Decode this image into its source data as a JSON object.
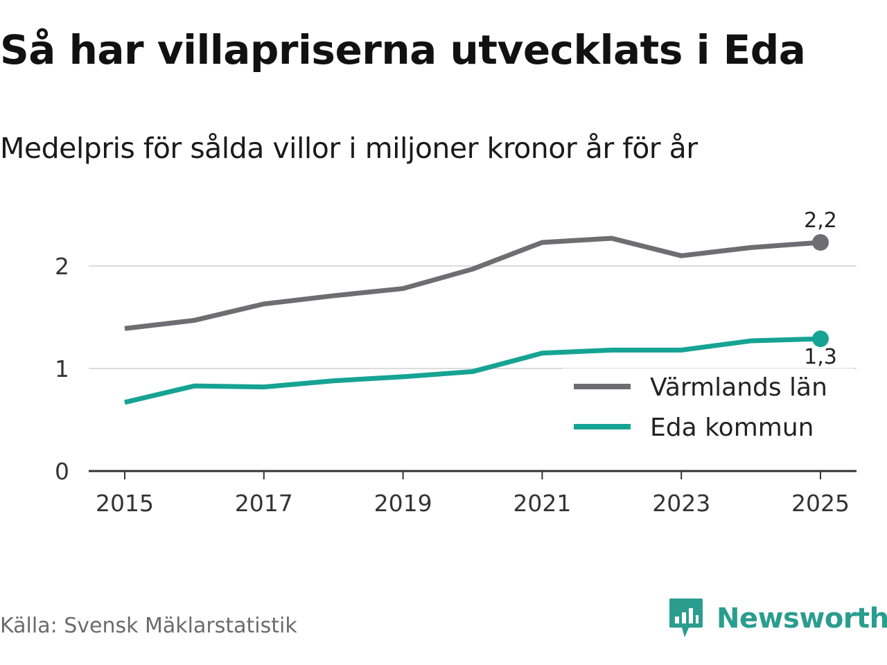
{
  "title": "Så har villapriserna utvecklats i Eda",
  "subtitle": "Medelpris för sålda villor i miljoner kronor år för år",
  "source": "Källa: Svensk Mäklarstatistik",
  "brand": {
    "name": "Newsworthy",
    "icon": "newsworthy-logo-icon",
    "color": "#2a9d8f"
  },
  "chart_data": {
    "type": "line",
    "title": "Så har villapriserna utvecklats i Eda",
    "subtitle": "Medelpris för sålda villor i miljoner kronor år för år",
    "xlabel": "",
    "ylabel": "",
    "x": [
      2015,
      2016,
      2017,
      2018,
      2019,
      2020,
      2021,
      2022,
      2023,
      2024,
      2025
    ],
    "xlim": [
      2014.5,
      2025.5
    ],
    "ylim": [
      0,
      2.5
    ],
    "x_ticks": [
      "2015",
      "2017",
      "2019",
      "2021",
      "2023",
      "2025"
    ],
    "y_ticks": [
      "0",
      "1",
      "2"
    ],
    "grid": "horizontal",
    "legend_position": "bottom-right",
    "series": [
      {
        "name": "Värmlands län",
        "color": "#6d6d72",
        "values": [
          1.39,
          1.47,
          1.63,
          1.71,
          1.78,
          1.97,
          2.23,
          2.27,
          2.1,
          2.18,
          2.23
        ],
        "end_label": "2,2",
        "end_label_position": "above"
      },
      {
        "name": "Eda kommun",
        "color": "#16a394",
        "values": [
          0.67,
          0.83,
          0.82,
          0.88,
          0.92,
          0.97,
          1.15,
          1.18,
          1.18,
          1.27,
          1.29
        ],
        "end_label": "1,3",
        "end_label_position": "below"
      }
    ]
  }
}
